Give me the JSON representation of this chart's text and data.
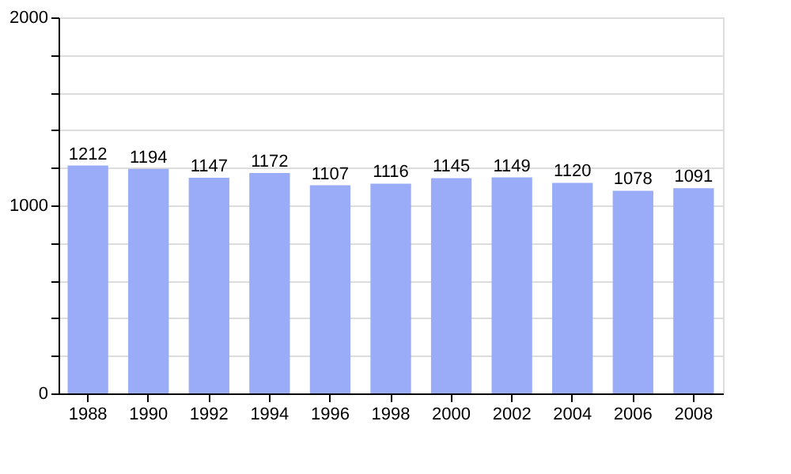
{
  "chart_data": {
    "type": "bar",
    "categories": [
      "1988",
      "1990",
      "1992",
      "1994",
      "1996",
      "1998",
      "2000",
      "2002",
      "2004",
      "2006",
      "2008"
    ],
    "values": [
      1212,
      1194,
      1147,
      1172,
      1107,
      1116,
      1145,
      1149,
      1120,
      1078,
      1091
    ],
    "color": "#9aabf8",
    "ylim": [
      0,
      2000
    ],
    "yticks": [
      0,
      {
        "value": 200,
        "label": null
      },
      {
        "value": 400,
        "label": null
      },
      {
        "value": 600,
        "label": null
      },
      {
        "value": 800,
        "label": null
      },
      1000,
      {
        "value": 1200,
        "label": null
      },
      {
        "value": 1400,
        "label": null
      },
      {
        "value": 1600,
        "label": null
      },
      {
        "value": 1800,
        "label": null
      },
      2000
    ],
    "grid": true,
    "data_labels": true
  }
}
